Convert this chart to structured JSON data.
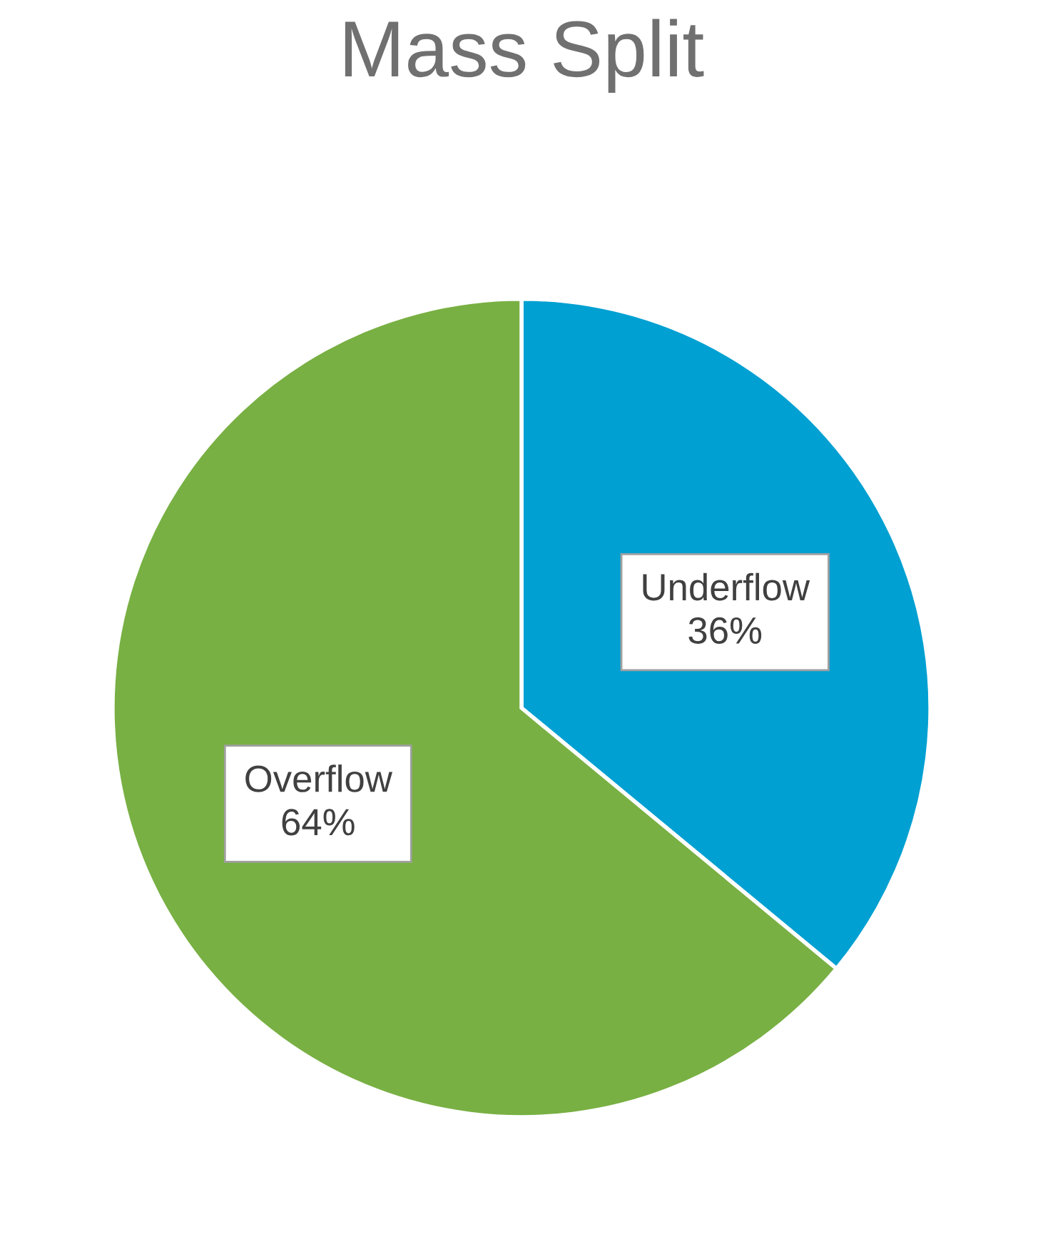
{
  "chart_data": {
    "type": "pie",
    "title": "Mass Split",
    "categories": [
      "Underflow",
      "Overflow"
    ],
    "values": [
      36,
      64
    ],
    "colors": [
      "#00a0d2",
      "#78b043"
    ],
    "value_labels": [
      "36%",
      "64%"
    ]
  }
}
